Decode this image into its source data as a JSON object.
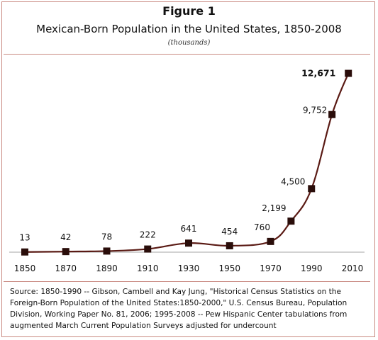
{
  "figure": {
    "number": "Figure 1",
    "title": "Mexican-Born Population in the United States, 1850-2008",
    "subtitle": "(thousands)"
  },
  "chart_data": {
    "type": "line",
    "x": [
      1850,
      1870,
      1890,
      1910,
      1930,
      1950,
      1970,
      1980,
      1990,
      2000,
      2008
    ],
    "series": [
      {
        "values": [
          13,
          42,
          78,
          222,
          641,
          454,
          760,
          2199,
          4500,
          9752,
          12671
        ]
      }
    ],
    "point_labels": [
      "13",
      "42",
      "78",
      "222",
      "641",
      "454",
      "760",
      "2,199",
      "4,500",
      "9,752",
      "12,671"
    ],
    "x_ticks": [
      "1850",
      "1870",
      "1890",
      "1910",
      "1930",
      "1950",
      "1970",
      "1990",
      "2010"
    ],
    "xlim": [
      1850,
      2010
    ],
    "ylim": [
      0,
      13000
    ],
    "xlabel": "",
    "ylabel": "",
    "grid": false,
    "line_color": "#5a1a14",
    "marker_color": "#2a0d0a"
  },
  "source": {
    "text": "Source: 1850-1990 -- Gibson, Cambell and Kay Jung, \"Historical Census Statistics on the Foreign-Born Population of the United States:1850-2000,\" U.S. Census  Bureau, Population Division, Working Paper No. 81, 2006; 1995-2008 -- Pew Hispanic Center tabulations from augmented March Current Population Surveys adjusted for undercount"
  }
}
